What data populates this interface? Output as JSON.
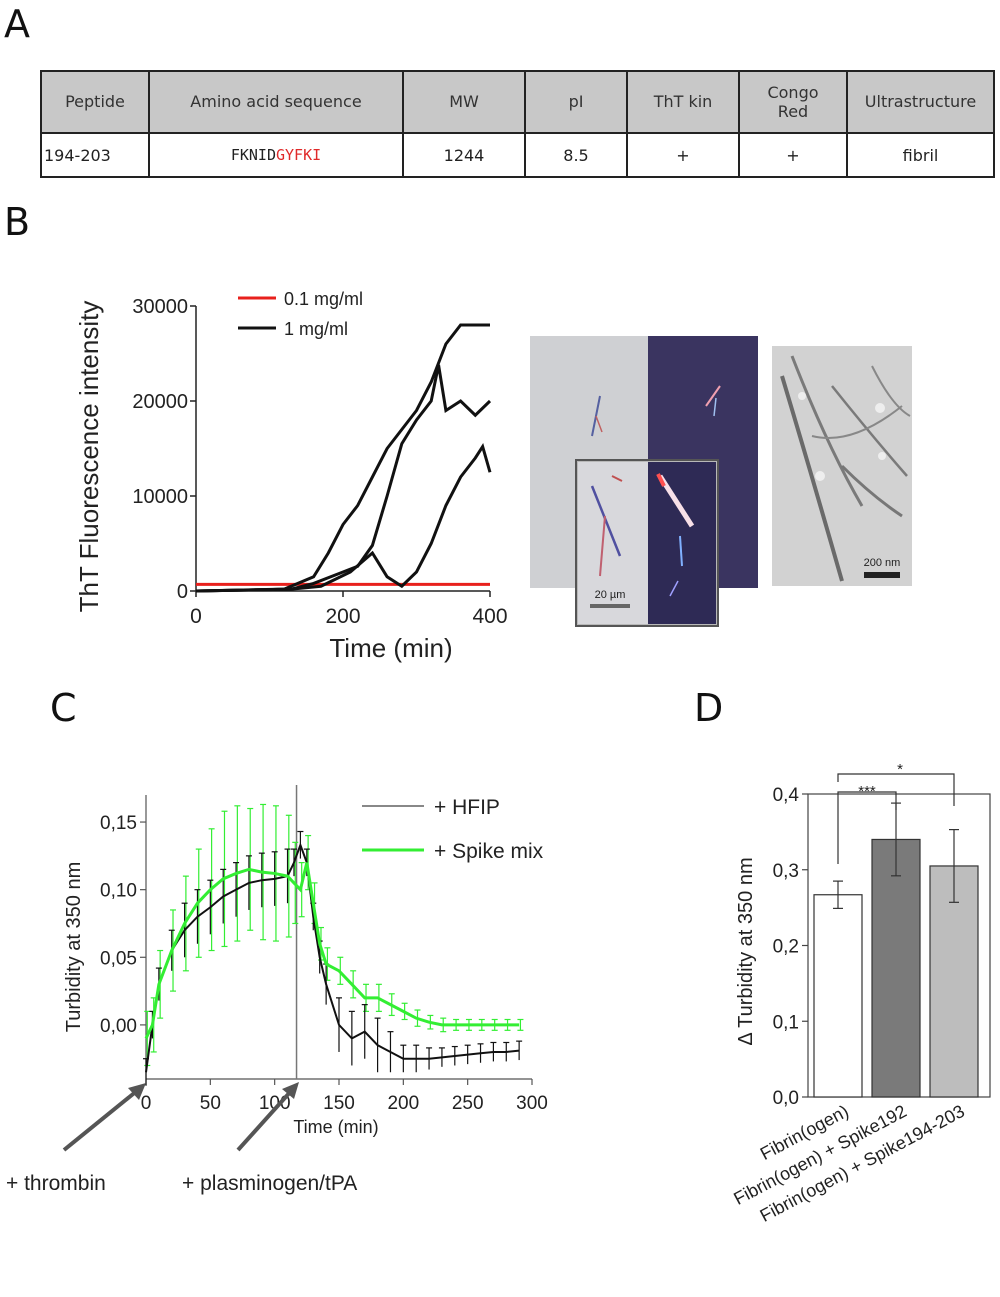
{
  "panels": {
    "a": "A",
    "b": "B",
    "c": "C",
    "d": "D"
  },
  "table": {
    "headers": [
      "Peptide",
      "Amino acid sequence",
      "MW",
      "pI",
      "ThT kin",
      "Congo Red",
      "Ultrastructure"
    ],
    "row": {
      "peptide": "194-203",
      "seq_black": "FKNID",
      "seq_red": "GYFKI",
      "mw": "1244",
      "pi": "8.5",
      "tht": "+",
      "congo": "+",
      "ultra": "fibril"
    }
  },
  "micrographs": {
    "scale_polarized": "20 µm",
    "scale_em": "200 nm"
  },
  "colors": {
    "red": "#e8201c",
    "black": "#111111",
    "green": "#33ee33",
    "gray": "#888888",
    "bar1": "#ffffff",
    "bar2": "#7a7a7a",
    "bar3": "#bdbdbd"
  },
  "chart_data": [
    {
      "id": "B",
      "type": "line",
      "xlabel": "Time (min)",
      "ylabel": "ThT Fluorescence intensity",
      "xlim": [
        0,
        400
      ],
      "ylim": [
        0,
        30000
      ],
      "xticks": [
        "0",
        "200",
        "400"
      ],
      "yticks": [
        "0",
        "10000",
        "20000",
        "30000"
      ],
      "legend": "top-left",
      "series": [
        {
          "name": "0.1 mg/ml",
          "color": "#e8201c",
          "x": [
            0,
            400
          ],
          "y": [
            700,
            700
          ]
        },
        {
          "name": "1 mg/ml",
          "color": "#111111",
          "x": [
            0,
            120,
            160,
            180,
            200,
            220,
            240,
            260,
            280,
            300,
            320,
            340,
            360,
            380,
            400
          ],
          "y": [
            0,
            200,
            1500,
            4000,
            7000,
            9000,
            12000,
            15000,
            17000,
            19000,
            22000,
            26000,
            28000,
            28000,
            28000
          ]
        },
        {
          "name": "",
          "color": "#111111",
          "x": [
            0,
            130,
            160,
            200,
            220,
            240,
            260,
            280,
            300,
            320,
            330,
            340,
            360,
            380,
            400
          ],
          "y": [
            0,
            200,
            800,
            2000,
            2600,
            4800,
            10000,
            15500,
            18000,
            20000,
            23800,
            19000,
            20000,
            18500,
            20000
          ]
        },
        {
          "name": "",
          "color": "#111111",
          "x": [
            0,
            130,
            170,
            210,
            240,
            260,
            280,
            300,
            320,
            340,
            360,
            380,
            390,
            400
          ],
          "y": [
            0,
            200,
            500,
            2000,
            4000,
            1500,
            500,
            2000,
            5000,
            9000,
            12000,
            14000,
            15200,
            12500
          ]
        }
      ]
    },
    {
      "id": "C",
      "type": "line",
      "xlabel": "Time (min)",
      "ylabel": "Turbidity at 350 nm",
      "xlim": [
        0,
        300
      ],
      "ylim": [
        -0.04,
        0.17
      ],
      "xticks": [
        "0",
        "50",
        "100",
        "150",
        "200",
        "250",
        "300"
      ],
      "yticks": [
        "0,00",
        "0,05",
        "0,10",
        "0,15"
      ],
      "legend": "top-right",
      "annotations": [
        "+ thrombin",
        "+ plasminogen/tPA"
      ],
      "series": [
        {
          "name": "+ HFIP",
          "color": "#111111",
          "x": [
            0,
            5,
            10,
            20,
            30,
            40,
            50,
            60,
            70,
            80,
            90,
            100,
            110,
            115,
            120,
            125,
            130,
            135,
            140,
            150,
            160,
            170,
            180,
            190,
            200,
            210,
            220,
            230,
            240,
            250,
            260,
            270,
            280,
            290
          ],
          "y": [
            -0.035,
            0.0,
            0.03,
            0.055,
            0.07,
            0.08,
            0.087,
            0.095,
            0.1,
            0.105,
            0.107,
            0.108,
            0.11,
            0.12,
            0.133,
            0.12,
            0.08,
            0.05,
            0.03,
            0.0,
            -0.01,
            -0.005,
            -0.015,
            -0.02,
            -0.025,
            -0.025,
            -0.025,
            -0.024,
            -0.023,
            -0.022,
            -0.021,
            -0.02,
            -0.02,
            -0.019
          ]
        },
        {
          "name": "+ Spike mix",
          "color": "#33ee33",
          "x": [
            0,
            5,
            10,
            20,
            30,
            40,
            50,
            60,
            70,
            80,
            90,
            100,
            110,
            115,
            120,
            125,
            130,
            135,
            140,
            150,
            160,
            170,
            180,
            190,
            200,
            210,
            220,
            230,
            240,
            250,
            260,
            270,
            280,
            290
          ],
          "y": [
            -0.01,
            0.0,
            0.03,
            0.055,
            0.075,
            0.09,
            0.1,
            0.108,
            0.112,
            0.115,
            0.113,
            0.112,
            0.11,
            0.105,
            0.1,
            0.12,
            0.09,
            0.06,
            0.045,
            0.04,
            0.03,
            0.02,
            0.02,
            0.015,
            0.01,
            0.005,
            0.002,
            0.0,
            0.0,
            0.0,
            0.0,
            0.0,
            0.0,
            0.0
          ]
        }
      ],
      "error_spike": [
        0.02,
        0.02,
        0.025,
        0.03,
        0.035,
        0.04,
        0.045,
        0.05,
        0.05,
        0.045,
        0.05,
        0.05,
        0.045,
        0.03,
        0.02,
        0.02,
        0.015,
        0.012,
        0.012,
        0.01,
        0.01,
        0.01,
        0.01,
        0.008,
        0.006,
        0.006,
        0.005,
        0.005,
        0.004,
        0.004,
        0.004,
        0.004,
        0.004,
        0.004
      ],
      "error_hfip": [
        0.01,
        0.01,
        0.012,
        0.015,
        0.02,
        0.02,
        0.02,
        0.02,
        0.02,
        0.02,
        0.02,
        0.02,
        0.02,
        0.01,
        0.01,
        0.01,
        0.01,
        0.012,
        0.015,
        0.02,
        0.02,
        0.02,
        0.02,
        0.015,
        0.01,
        0.01,
        0.008,
        0.007,
        0.007,
        0.007,
        0.007,
        0.007,
        0.007,
        0.007
      ]
    },
    {
      "id": "D",
      "type": "bar",
      "ylabel": "Δ Turbidity at 350 nm",
      "ylim": [
        0,
        0.4
      ],
      "yticks": [
        "0,0",
        "0,1",
        "0,2",
        "0,3",
        "0,4"
      ],
      "categories": [
        "Fibrin(ogen)",
        "Fibrin(ogen) + Spike192",
        "Fibrin(ogen) + Spike194-203"
      ],
      "values": [
        0.267,
        0.34,
        0.305
      ],
      "errors": [
        0.018,
        0.048,
        0.048
      ],
      "significance": [
        "***",
        "*"
      ]
    }
  ]
}
